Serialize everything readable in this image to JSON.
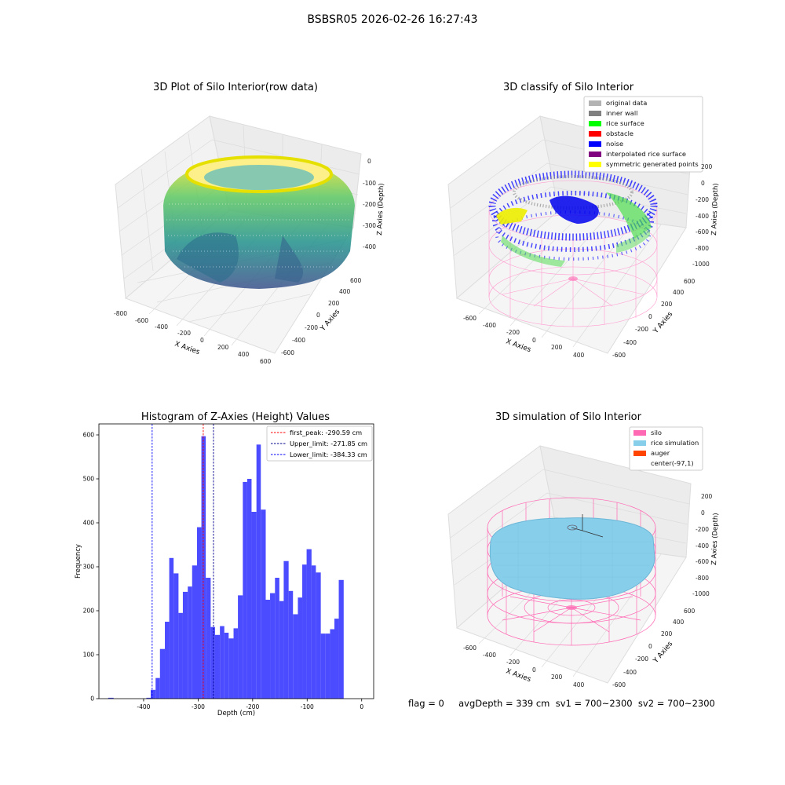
{
  "suptitle": "BSBSR05 2026-02-26 16:27:43",
  "panels": {
    "raw": {
      "title": "3D Plot of Silo Interior(row data)",
      "xlabel": "X Axies",
      "ylabel": "Y Axies",
      "zlabel": "Z Axies (Depth)",
      "xticks": [
        "-800",
        "-600",
        "-400",
        "-200",
        "0",
        "200",
        "400",
        "600"
      ],
      "yticks": [
        "-600",
        "-400",
        "-200",
        "0",
        "200",
        "400",
        "600"
      ],
      "zticks": [
        "0",
        "-100",
        "-200",
        "-300",
        "-400"
      ]
    },
    "classify": {
      "title": "3D classify of Silo Interior",
      "xlabel": "X Axies",
      "ylabel": "Y Axies",
      "zlabel": "Z Axies (Depth)",
      "xticks": [
        "-600",
        "-400",
        "-200",
        "0",
        "200",
        "400"
      ],
      "yticks": [
        "-600",
        "-400",
        "-200",
        "0",
        "200",
        "400",
        "600"
      ],
      "zticks": [
        "200",
        "0",
        "-200",
        "-400",
        "-600",
        "-800",
        "-1000"
      ],
      "legend": [
        {
          "label": "original data",
          "color": "#b3b3b3"
        },
        {
          "label": "inner wall",
          "color": "#808080"
        },
        {
          "label": "rice surface",
          "color": "#00ff00"
        },
        {
          "label": "obstacle",
          "color": "#ff0000"
        },
        {
          "label": "noise",
          "color": "#0000ff"
        },
        {
          "label": "interpolated rice surface",
          "color": "#800080"
        },
        {
          "label": "symmetric generated points",
          "color": "#ffff00"
        }
      ]
    },
    "simulation": {
      "title": "3D simulation of Silo Interior",
      "xlabel": "X Axies",
      "ylabel": "Y Axies",
      "zlabel": "Z Axies (Depth)",
      "xticks": [
        "-600",
        "-400",
        "-200",
        "0",
        "200",
        "400"
      ],
      "yticks": [
        "-600",
        "-400",
        "-200",
        "0",
        "200",
        "400",
        "600"
      ],
      "zticks": [
        "200",
        "0",
        "-200",
        "-400",
        "-600",
        "-800",
        "-1000"
      ],
      "legend": [
        {
          "label": "silo",
          "color": "#ff69b4"
        },
        {
          "label": "rice simulation",
          "color": "#87ceeb"
        },
        {
          "label": "auger",
          "color": "#ff4500"
        },
        {
          "label": "center(-97,1)",
          "color": "none"
        }
      ]
    }
  },
  "chart_data": {
    "type": "bar",
    "title": "Histogram of Z-Axies (Height) Values",
    "xlabel": "Depth (cm)",
    "ylabel": "Frequency",
    "xlim": [
      -482,
      22
    ],
    "ylim": [
      0,
      625
    ],
    "xticks": [
      -400,
      -300,
      -200,
      -100,
      0
    ],
    "yticks": [
      0,
      100,
      200,
      300,
      400,
      500,
      600
    ],
    "bar_color": "#4b4bff",
    "bins": [
      {
        "x0": -465,
        "x1": -455,
        "value": 2
      },
      {
        "x0": -395,
        "x1": -387,
        "value": 2
      },
      {
        "x0": -387,
        "x1": -378,
        "value": 20
      },
      {
        "x0": -378,
        "x1": -370,
        "value": 47
      },
      {
        "x0": -370,
        "x1": -361,
        "value": 113
      },
      {
        "x0": -361,
        "x1": -353,
        "value": 175
      },
      {
        "x0": -353,
        "x1": -345,
        "value": 320
      },
      {
        "x0": -345,
        "x1": -336,
        "value": 285
      },
      {
        "x0": -336,
        "x1": -328,
        "value": 195
      },
      {
        "x0": -328,
        "x1": -319,
        "value": 243
      },
      {
        "x0": -319,
        "x1": -311,
        "value": 255
      },
      {
        "x0": -311,
        "x1": -302,
        "value": 303
      },
      {
        "x0": -302,
        "x1": -294,
        "value": 390
      },
      {
        "x0": -294,
        "x1": -286,
        "value": 597
      },
      {
        "x0": -286,
        "x1": -277,
        "value": 275
      },
      {
        "x0": -277,
        "x1": -269,
        "value": 163
      },
      {
        "x0": -269,
        "x1": -260,
        "value": 145
      },
      {
        "x0": -260,
        "x1": -252,
        "value": 165
      },
      {
        "x0": -252,
        "x1": -244,
        "value": 150
      },
      {
        "x0": -244,
        "x1": -235,
        "value": 137
      },
      {
        "x0": -235,
        "x1": -227,
        "value": 160
      },
      {
        "x0": -227,
        "x1": -218,
        "value": 235
      },
      {
        "x0": -218,
        "x1": -210,
        "value": 493
      },
      {
        "x0": -210,
        "x1": -202,
        "value": 500
      },
      {
        "x0": -202,
        "x1": -193,
        "value": 425
      },
      {
        "x0": -193,
        "x1": -185,
        "value": 578
      },
      {
        "x0": -185,
        "x1": -176,
        "value": 430
      },
      {
        "x0": -176,
        "x1": -168,
        "value": 225
      },
      {
        "x0": -168,
        "x1": -159,
        "value": 240
      },
      {
        "x0": -159,
        "x1": -151,
        "value": 275
      },
      {
        "x0": -151,
        "x1": -143,
        "value": 222
      },
      {
        "x0": -143,
        "x1": -134,
        "value": 313
      },
      {
        "x0": -134,
        "x1": -126,
        "value": 245
      },
      {
        "x0": -126,
        "x1": -117,
        "value": 192
      },
      {
        "x0": -117,
        "x1": -109,
        "value": 230
      },
      {
        "x0": -109,
        "x1": -101,
        "value": 305
      },
      {
        "x0": -101,
        "x1": -92,
        "value": 340
      },
      {
        "x0": -92,
        "x1": -84,
        "value": 303
      },
      {
        "x0": -84,
        "x1": -75,
        "value": 287
      },
      {
        "x0": -75,
        "x1": -67,
        "value": 148
      },
      {
        "x0": -67,
        "x1": -58,
        "value": 148
      },
      {
        "x0": -58,
        "x1": -50,
        "value": 158
      },
      {
        "x0": -50,
        "x1": -42,
        "value": 182
      },
      {
        "x0": -42,
        "x1": -33,
        "value": 270
      }
    ],
    "vlines": [
      {
        "x": -290.59,
        "color": "#ff0000",
        "label": "first_peak: -290.59 cm"
      },
      {
        "x": -271.85,
        "color": "#00008b",
        "label": "Upper_limit: -271.85 cm"
      },
      {
        "x": -384.33,
        "color": "#0000ff",
        "label": "Lower_limit: -384.33 cm"
      }
    ],
    "legend_position": "top-right"
  },
  "footer": {
    "text": "flag = 0     avgDepth = 339 cm  sv1 = 700~2300  sv2 = 700~2300"
  }
}
